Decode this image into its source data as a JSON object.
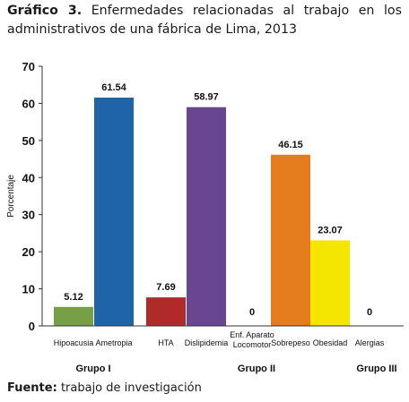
{
  "caption": {
    "label": "Gráfico 3.",
    "text": "Enfermedades relacionadas al trabajo en los administrativos de una fábrica de Lima, 2013"
  },
  "source": {
    "label": "Fuente:",
    "text": "trabajo de investigación"
  },
  "chart_data": {
    "type": "bar",
    "ylabel": "Porcentaje",
    "ylim": [
      0,
      70
    ],
    "yticks": [
      0,
      10,
      20,
      30,
      40,
      50,
      60,
      70
    ],
    "grid": false,
    "categories": [
      {
        "label": [
          "Hipoacusia"
        ],
        "value": 5.12,
        "value_label": "5.12",
        "color": "#77a046",
        "group": "Grupo I"
      },
      {
        "label": [
          "Ametropia"
        ],
        "value": 61.54,
        "value_label": "61.54",
        "color": "#1f64a8",
        "group": "Grupo I"
      },
      {
        "label": [
          "HTA"
        ],
        "value": 7.69,
        "value_label": "7.69",
        "color": "#b02a2a",
        "group": "Grupo II"
      },
      {
        "label": [
          "Dislipidemia"
        ],
        "value": 58.97,
        "value_label": "58.97",
        "color": "#6b4690",
        "group": "Grupo II"
      },
      {
        "label": [
          "Enf. Aparato",
          "Locomotor"
        ],
        "value": 0,
        "value_label": "0",
        "color": "#888888",
        "group": "Grupo II"
      },
      {
        "label": [
          "Sobrepeso"
        ],
        "value": 46.15,
        "value_label": "46.15",
        "color": "#e57d1e",
        "group": "Grupo II"
      },
      {
        "label": [
          "Obesidad"
        ],
        "value": 23.07,
        "value_label": "23.07",
        "color": "#f5e600",
        "group": "Grupo II"
      },
      {
        "label": [
          "Alergias"
        ],
        "value": 0,
        "value_label": "0",
        "color": "#888888",
        "group": "Grupo III"
      }
    ],
    "groups": [
      "Grupo I",
      "Grupo II",
      "Grupo III"
    ]
  }
}
